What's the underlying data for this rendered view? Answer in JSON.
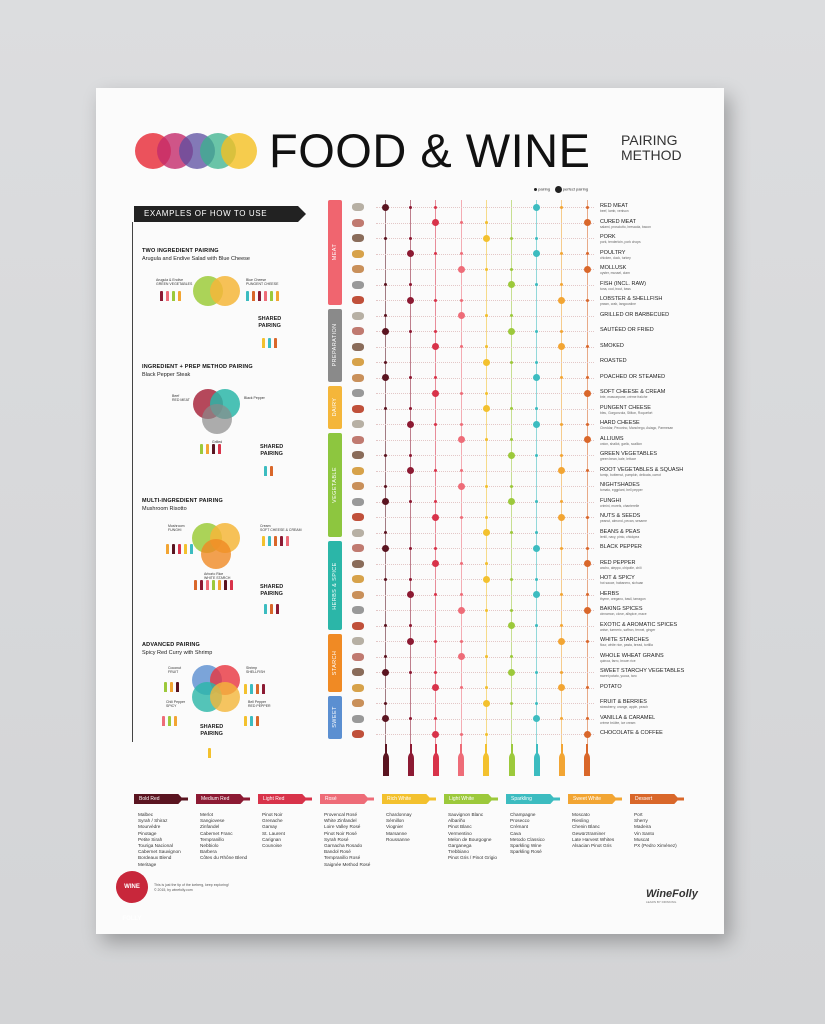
{
  "title": {
    "main": "FOOD & WINE",
    "sub1": "PAIRING",
    "sub2": "METHOD"
  },
  "legend": {
    "pairing": "pairing",
    "perfect": "perfect pairing"
  },
  "howto": "EXAMPLES OF HOW TO USE",
  "examples": [
    {
      "title": "TWO INGREDIENT PAIRING",
      "subtitle": "Arugula and Endive Salad with Blue Cheese",
      "a": "Arugula & Endive",
      "a_sub": "GREEN VEGETABLES",
      "b": "Blue Cheese",
      "b_sub": "PUNGENT CHEESE",
      "shared1": "SHARED",
      "shared2": "PAIRING"
    },
    {
      "title": "INGREDIENT + PREP METHOD PAIRING",
      "subtitle": "Black Pepper Steak",
      "a": "Beef",
      "a_sub": "RED MEAT",
      "b": "Black Pepper",
      "c": "Grilled",
      "shared1": "SHARED",
      "shared2": "PAIRING"
    },
    {
      "title": "MULTI-INGREDIENT PAIRING",
      "subtitle": "Mushroom Risotto",
      "a": "Mushroom",
      "a_sub": "FUNGHI",
      "b": "Cream",
      "b_sub": "SOFT CHEESE & CREAM",
      "c": "Arborio Rice",
      "c_sub": "WHITE STARCH",
      "shared1": "SHARED",
      "shared2": "PAIRING"
    },
    {
      "title": "ADVANCED PAIRING",
      "subtitle": "Spicy Red Curry with Shrimp",
      "a": "Coconut",
      "a_sub": "FRUIT",
      "b": "Shrimp",
      "b_sub": "SHELLFISH",
      "c": "Chili Pepper",
      "c_sub": "SPICY",
      "d": "Bell Pepper",
      "d_sub": "RED PEPPER",
      "shared1": "SHARED",
      "shared2": "PAIRING"
    }
  ],
  "categories": [
    {
      "label": "MEAT",
      "color": "#f0656f"
    },
    {
      "label": "PREPARATION",
      "color": "#8a8a8a"
    },
    {
      "label": "DAIRY",
      "color": "#f4b63a"
    },
    {
      "label": "VEGETABLE",
      "color": "#8dc63f"
    },
    {
      "label": "HERBS & SPICE",
      "color": "#2bb6a8"
    },
    {
      "label": "STARCH",
      "color": "#f08a24"
    },
    {
      "label": "SWEET",
      "color": "#5b8fd1"
    }
  ],
  "rows": [
    {
      "label": "RED MEAT",
      "sub": "beef, lamb, venison"
    },
    {
      "label": "CURED MEAT",
      "sub": "salami, prosciutto, bresaola, bacon"
    },
    {
      "label": "PORK",
      "sub": "pork, tenderloin, pork chops"
    },
    {
      "label": "POULTRY",
      "sub": "chicken, duck, turkey"
    },
    {
      "label": "MOLLUSK",
      "sub": "oyster, mussel, clam"
    },
    {
      "label": "FISH (INCL. RAW)",
      "sub": "tuna, cod, trout, bass"
    },
    {
      "label": "LOBSTER & SHELLFISH",
      "sub": "prawn, crab, langoustine"
    },
    {
      "label": "GRILLED OR BARBECUED",
      "sub": ""
    },
    {
      "label": "SAUTÉED OR FRIED",
      "sub": ""
    },
    {
      "label": "SMOKED",
      "sub": ""
    },
    {
      "label": "ROASTED",
      "sub": ""
    },
    {
      "label": "POACHED OR STEAMED",
      "sub": ""
    },
    {
      "label": "SOFT CHEESE & CREAM",
      "sub": "brie, mascarpone, crème fraîche"
    },
    {
      "label": "PUNGENT CHEESE",
      "sub": "bleu, Gorgonzola, Stilton, Roquefort"
    },
    {
      "label": "HARD CHEESE",
      "sub": "Cheddar, Pecorino, Manchego, Asiago, Parmesan"
    },
    {
      "label": "ALLIUMS",
      "sub": "onion, shallot, garlic, scallion"
    },
    {
      "label": "GREEN VEGETABLES",
      "sub": "green bean, kale, lettuce"
    },
    {
      "label": "ROOT VEGETABLES & SQUASH",
      "sub": "turnip, butternut, pumpkin, delicata, carrot"
    },
    {
      "label": "NIGHTSHADES",
      "sub": "tomato, eggplant, bell pepper"
    },
    {
      "label": "FUNGHI",
      "sub": "crimini, morels, chanterelle"
    },
    {
      "label": "NUTS & SEEDS",
      "sub": "peanut, almond, pecan, sesame"
    },
    {
      "label": "BEANS & PEAS",
      "sub": "lentil, navy, pinto, chickpea"
    },
    {
      "label": "BLACK PEPPER",
      "sub": ""
    },
    {
      "label": "RED PEPPER",
      "sub": "ancho, aleppo, chipotle, chili"
    },
    {
      "label": "HOT & SPICY",
      "sub": "hot sauce, habanero, sichuan"
    },
    {
      "label": "HERBS",
      "sub": "thyme, oregano, basil, tarragon"
    },
    {
      "label": "BAKING SPICES",
      "sub": "cinnamon, clove, allspice, mace"
    },
    {
      "label": "EXOTIC & AROMATIC SPICES",
      "sub": "anise, turmeric, saffron, fennel, ginger"
    },
    {
      "label": "WHITE STARCHES",
      "sub": "flour, white rice, pasta, bread, tortilla"
    },
    {
      "label": "WHOLE WHEAT GRAINS",
      "sub": "quinoa, farro, brown rice"
    },
    {
      "label": "SWEET STARCHY VEGETABLES",
      "sub": "sweet potato, yucca, taro"
    },
    {
      "label": "POTATO",
      "sub": ""
    },
    {
      "label": "FRUIT & BERRIES",
      "sub": "strawberry, orange, apple, peach"
    },
    {
      "label": "VANILLA & CARAMEL",
      "sub": "crème brûlée, ice cream"
    },
    {
      "label": "CHOCOLATE & COFFEE",
      "sub": ""
    }
  ],
  "wines": [
    {
      "name": "Bold Red",
      "color": "#5a1420",
      "list": "Malbec\nSyrah / Shiraz\nMourvèdre\nPinotage\nPetite Sirah\nTouriga Nacional\nCabernet Sauvignon\nBordeaux Blend\nMeritage"
    },
    {
      "name": "Medium Red",
      "color": "#8c1a33",
      "list": "Merlot\nSangiovese\nZinfandel\nCabernet Franc\nTempranillo\nNebbiolo\nBarbera\nCôtes du Rhône Blend"
    },
    {
      "name": "Light Red",
      "color": "#d8334a",
      "list": "Pinot Noir\nGrenache\nGamay\nSt. Laurent\nCarignan\nCounoise"
    },
    {
      "name": "Rosé",
      "color": "#ee6c78",
      "list": "Provencal Rosé\nWhite Zinfandel\nLoire Valley Rosé\nPinot Noir Rosé\nSyrah Rosé\nGarnacha Rosado\nBandol Rosé\nTempranillo Rosé\nSaignée Method Rosé"
    },
    {
      "name": "Rich White",
      "color": "#f3c12e",
      "list": "Chardonnay\nSémillon\nViognier\nMarsanne\nRoussanne"
    },
    {
      "name": "Light White",
      "color": "#9cc93b",
      "list": "Sauvignon Blanc\nAlbariño\nPinot Blanc\nVermentino\nMelon de Bourgogne\nGarganega\nTrebbiano\nPinot Gris / Pinot Grigio"
    },
    {
      "name": "Sparkling",
      "color": "#3cbcc0",
      "list": "Champagne\nProsecco\nCrémant\nCava\nMetodo Classico\nSparkling Wine\nSparkling Rosé"
    },
    {
      "name": "Sweet White",
      "color": "#f2a533",
      "list": "Moscato\nRiesling\nChenin Blanc\nGewürztraminer\nLate Harvest Whites\nAlsacian Pinot Gris"
    },
    {
      "name": "Dessert",
      "color": "#d9672a",
      "list": "Port\nSherry\nMadeira\nVin Santo\nMuscat\nPX (Pedro Ximénez)"
    }
  ],
  "footer": {
    "logo": "WINE FOLLY",
    "line1": "This is just the tip of the iceberg, keep exploring!",
    "line2": "© 2015, by winefolly.com",
    "brand": "WineFolly",
    "brand_sub": "LEARN BY DRINKING"
  }
}
